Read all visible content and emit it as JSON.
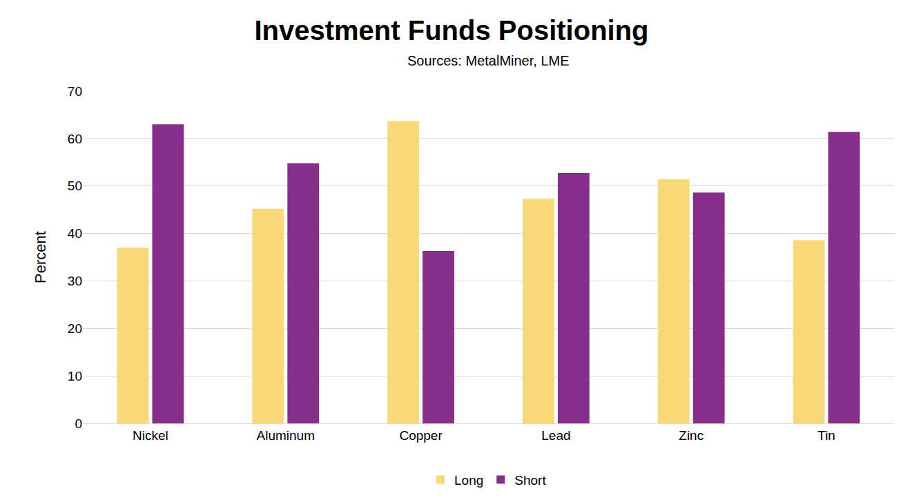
{
  "chart_data": {
    "type": "bar",
    "title": "Investment Funds Positioning",
    "subtitle": "Sources: MetalMiner, LME",
    "y_label": "Percent",
    "categories": [
      "Nickel",
      "Aluminum",
      "Copper",
      "Lead",
      "Zinc",
      "Tin"
    ],
    "series": [
      {
        "name": "Long",
        "color": "#f8d877",
        "values": [
          37,
          45.2,
          63.7,
          47.3,
          51.4,
          38.6
        ]
      },
      {
        "name": "Short",
        "color": "#872d8a",
        "values": [
          63,
          54.8,
          36.3,
          52.7,
          48.6,
          61.4
        ]
      }
    ],
    "ylim": [
      0,
      70
    ],
    "yticks": [
      0,
      10,
      20,
      30,
      40,
      50,
      60,
      70
    ],
    "grid": true,
    "legend": "bottom"
  }
}
